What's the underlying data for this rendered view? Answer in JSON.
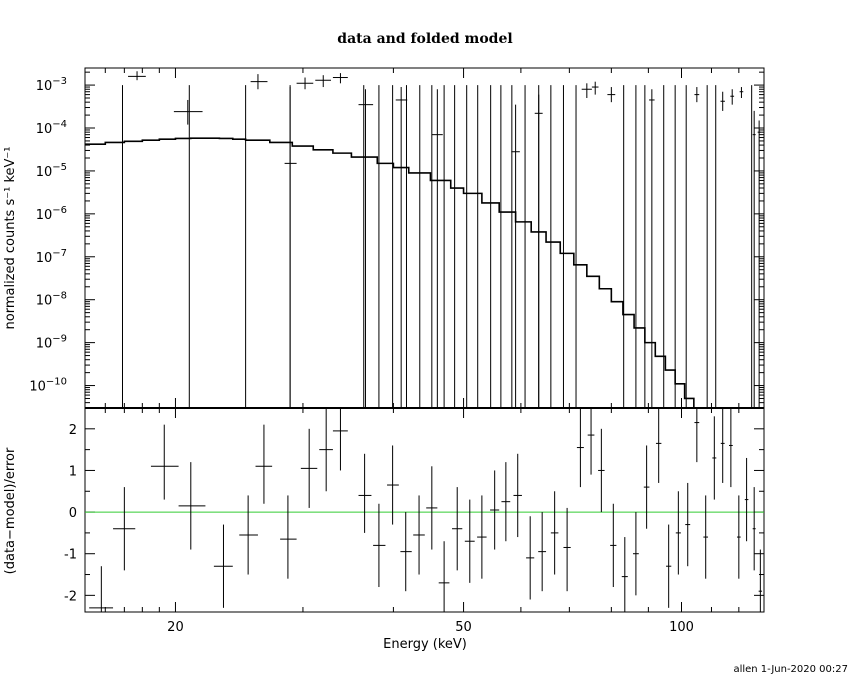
{
  "chart_data": [
    {
      "type": "scatter",
      "title": "data and folded model",
      "xlabel": "",
      "ylabel": "normalized counts s⁻¹ keV⁻¹",
      "x_scale": "log",
      "y_scale": "log",
      "xlim": [
        15,
        130
      ],
      "ylim": [
        3e-11,
        0.0025
      ],
      "y_ticks": [
        {
          "value": 0.001,
          "exp": "−3"
        },
        {
          "value": 0.0001,
          "exp": "−4"
        },
        {
          "value": 1e-05,
          "exp": "−5"
        },
        {
          "value": 1e-06,
          "exp": "−6"
        },
        {
          "value": 1e-07,
          "exp": "−7"
        },
        {
          "value": 1e-08,
          "exp": "−8"
        },
        {
          "value": 1e-09,
          "exp": "−9"
        },
        {
          "value": 1e-10,
          "exp": "−10"
        }
      ],
      "y_tick_base": "10",
      "data_points": [
        {
          "x": 17.7,
          "xerr": [
            17.2,
            18.2
          ],
          "y": 0.0016,
          "ylo": 0.0013,
          "yhi": 0.0021
        },
        {
          "x": 20.8,
          "xerr": [
            19.9,
            21.8
          ],
          "y": 0.00024,
          "ylo": 0.00012,
          "yhi": 0.00045
        },
        {
          "x": 26.0,
          "xerr": [
            25.4,
            26.8
          ],
          "y": 0.0012,
          "ylo": 0.0008,
          "yhi": 0.0018
        },
        {
          "x": 28.8,
          "xerr": [
            28.3,
            29.4
          ],
          "y": 1.5e-05,
          "ylo": 3e-11,
          "yhi": 0.0009
        },
        {
          "x": 30.2,
          "xerr": [
            29.4,
            31.0
          ],
          "y": 0.0011,
          "ylo": 0.0008,
          "yhi": 0.0015
        },
        {
          "x": 32.0,
          "xerr": [
            31.2,
            32.8
          ],
          "y": 0.0013,
          "ylo": 0.0009,
          "yhi": 0.0017
        },
        {
          "x": 33.8,
          "xerr": [
            33.0,
            34.6
          ],
          "y": 0.0015,
          "ylo": 0.0011,
          "yhi": 0.0019
        },
        {
          "x": 36.6,
          "xerr": [
            35.8,
            37.5
          ],
          "y": 0.00035,
          "ylo": 3e-11,
          "yhi": 0.0008
        },
        {
          "x": 41.0,
          "xerr": [
            40.3,
            41.8
          ],
          "y": 0.00045,
          "ylo": 3e-11,
          "yhi": 0.0009
        },
        {
          "x": 46.0,
          "xerr": [
            45.2,
            46.8
          ],
          "y": 7e-05,
          "ylo": 3e-11,
          "yhi": 0.0008
        },
        {
          "x": 59.0,
          "xerr": [
            58.2,
            59.8
          ],
          "y": 2.8e-05,
          "ylo": 3e-11,
          "yhi": 0.00035
        },
        {
          "x": 63.5,
          "xerr": [
            62.7,
            64.3
          ],
          "y": 0.00022,
          "ylo": 3e-11,
          "yhi": 0.0006
        },
        {
          "x": 74.0,
          "xerr": [
            72.8,
            75.2
          ],
          "y": 0.0008,
          "ylo": 0.0005,
          "yhi": 0.0011
        },
        {
          "x": 76.0,
          "xerr": [
            75.2,
            76.8
          ],
          "y": 0.0009,
          "ylo": 0.0006,
          "yhi": 0.0012
        },
        {
          "x": 80.0,
          "xerr": [
            79.0,
            81.0
          ],
          "y": 0.0006,
          "ylo": 0.0004,
          "yhi": 0.0009
        },
        {
          "x": 91.0,
          "xerr": [
            90.2,
            91.8
          ],
          "y": 0.00045,
          "ylo": 3e-11,
          "yhi": 0.0008
        },
        {
          "x": 105.0,
          "xerr": [
            104.2,
            105.8
          ],
          "y": 0.0006,
          "ylo": 0.0004,
          "yhi": 0.0009
        },
        {
          "x": 114.0,
          "xerr": [
            113.2,
            114.8
          ],
          "y": 0.00042,
          "ylo": 0.00025,
          "yhi": 0.0007
        },
        {
          "x": 117.5,
          "xerr": [
            116.8,
            118.2
          ],
          "y": 0.00055,
          "ylo": 0.00035,
          "yhi": 0.0008
        },
        {
          "x": 121.0,
          "xerr": [
            120.3,
            121.7
          ],
          "y": 0.0007,
          "ylo": 0.0005,
          "yhi": 0.0009
        },
        {
          "x": 126.0,
          "xerr": [
            125.4,
            126.6
          ],
          "y": 7e-05,
          "ylo": 3e-11,
          "yhi": 0.00025
        },
        {
          "x": 128.0,
          "xerr": [
            127.4,
            128.6
          ],
          "y": 8e-05,
          "ylo": 3e-11,
          "yhi": 0.00015
        }
      ],
      "upper_limit_x": [
        16.9,
        20.9,
        25.0,
        28.8,
        36.4,
        38.2,
        39.9,
        41.7,
        43.5,
        45.2,
        47.0,
        48.6,
        50.5,
        52.3,
        54.5,
        56.3,
        58.3,
        60.8,
        63.5,
        66.0,
        68.7,
        71.5,
        83.2,
        86.5,
        89.0,
        94.5,
        98.0,
        101.5,
        108.5,
        111.5,
        125.0
      ],
      "upper_limit_top": 0.001,
      "model": {
        "x": [
          15,
          16,
          17,
          18,
          19,
          20,
          21,
          22,
          23,
          24,
          25,
          27,
          29,
          31,
          33,
          35,
          38,
          40,
          42,
          45,
          48,
          50,
          53,
          56,
          59,
          62,
          65,
          68,
          71,
          74,
          77,
          80,
          83,
          86,
          89,
          92,
          95,
          98,
          101,
          104,
          107,
          110,
          113,
          116,
          119,
          122,
          125,
          128,
          130
        ],
        "y": [
          4.2e-05,
          4.6e-05,
          4.9e-05,
          5.2e-05,
          5.5e-05,
          5.7e-05,
          5.8e-05,
          5.8e-05,
          5.7e-05,
          5.5e-05,
          5.2e-05,
          4.6e-05,
          3.8e-05,
          3.1e-05,
          2.6e-05,
          2.1e-05,
          1.5e-05,
          1.2e-05,
          9e-06,
          6e-06,
          4e-06,
          3e-06,
          1.8e-06,
          1.1e-06,
          6.5e-07,
          3.8e-07,
          2.2e-07,
          1.2e-07,
          6.5e-08,
          3.5e-08,
          1.8e-08,
          9e-09,
          4.5e-09,
          2.2e-09,
          1e-09,
          4.8e-10,
          2.3e-10,
          1.1e-10,
          5e-11,
          3e-11,
          3e-11,
          3e-11,
          3e-11,
          3e-11,
          3e-11,
          3e-11,
          3e-11,
          3e-11,
          3e-11
        ]
      },
      "note_model_cut": "model continues steeply below plot near 128 keV"
    },
    {
      "type": "scatter",
      "title": "",
      "xlabel": "Energy (keV)",
      "ylabel": "(data−model)/error",
      "x_scale": "log",
      "y_scale": "linear",
      "xlim": [
        15,
        130
      ],
      "ylim": [
        -2.4,
        2.5
      ],
      "x_ticks": [
        20,
        50,
        100
      ],
      "y_ticks": [
        2,
        1,
        0,
        -1,
        -2
      ],
      "zero_line_color": "#33cc33",
      "data_points": [
        {
          "x": 15.8,
          "xerr": [
            15.2,
            16.4
          ],
          "y": -2.3,
          "ylo": -2.6,
          "yhi": -1.3
        },
        {
          "x": 17.0,
          "xerr": [
            16.4,
            17.6
          ],
          "y": -0.4,
          "ylo": -1.4,
          "yhi": 0.6
        },
        {
          "x": 19.3,
          "xerr": [
            18.5,
            20.2
          ],
          "y": 1.1,
          "ylo": 0.3,
          "yhi": 2.1
        },
        {
          "x": 21.0,
          "xerr": [
            20.2,
            22.0
          ],
          "y": 0.15,
          "ylo": -0.9,
          "yhi": 1.2
        },
        {
          "x": 23.3,
          "xerr": [
            22.6,
            24.0
          ],
          "y": -1.3,
          "ylo": -2.3,
          "yhi": -0.3
        },
        {
          "x": 25.2,
          "xerr": [
            24.5,
            26.0
          ],
          "y": -0.55,
          "ylo": -1.5,
          "yhi": 0.4
        },
        {
          "x": 26.5,
          "xerr": [
            25.8,
            27.2
          ],
          "y": 1.1,
          "ylo": 0.2,
          "yhi": 2.1
        },
        {
          "x": 28.6,
          "xerr": [
            27.9,
            29.4
          ],
          "y": -0.65,
          "ylo": -1.6,
          "yhi": 0.4
        },
        {
          "x": 30.6,
          "xerr": [
            29.8,
            31.4
          ],
          "y": 1.05,
          "ylo": 0.1,
          "yhi": 2.0
        },
        {
          "x": 32.3,
          "xerr": [
            31.6,
            33.0
          ],
          "y": 1.5,
          "ylo": 0.5,
          "yhi": 2.5
        },
        {
          "x": 33.8,
          "xerr": [
            33.0,
            34.6
          ],
          "y": 1.95,
          "ylo": 1.0,
          "yhi": 2.5
        },
        {
          "x": 36.5,
          "xerr": [
            35.8,
            37.3
          ],
          "y": 0.4,
          "ylo": -0.5,
          "yhi": 1.4
        },
        {
          "x": 38.2,
          "xerr": [
            37.5,
            39.0
          ],
          "y": -0.8,
          "ylo": -1.8,
          "yhi": 0.2
        },
        {
          "x": 39.9,
          "xerr": [
            39.2,
            40.7
          ],
          "y": 0.65,
          "ylo": -0.3,
          "yhi": 1.6
        },
        {
          "x": 41.6,
          "xerr": [
            40.9,
            42.4
          ],
          "y": -0.95,
          "ylo": -1.9,
          "yhi": 0.0
        },
        {
          "x": 43.4,
          "xerr": [
            42.6,
            44.2
          ],
          "y": -0.55,
          "ylo": -1.5,
          "yhi": 0.4
        },
        {
          "x": 45.2,
          "xerr": [
            44.4,
            46.0
          ],
          "y": 0.1,
          "ylo": -0.9,
          "yhi": 1.1
        },
        {
          "x": 47.0,
          "xerr": [
            46.2,
            47.8
          ],
          "y": -1.7,
          "ylo": -2.4,
          "yhi": -0.7
        },
        {
          "x": 49.0,
          "xerr": [
            48.2,
            49.8
          ],
          "y": -0.4,
          "ylo": -1.4,
          "yhi": 0.6
        },
        {
          "x": 51.0,
          "xerr": [
            50.2,
            51.8
          ],
          "y": -0.7,
          "ylo": -1.7,
          "yhi": 0.3
        },
        {
          "x": 53.0,
          "xerr": [
            52.2,
            53.8
          ],
          "y": -0.6,
          "ylo": -1.6,
          "yhi": 0.4
        },
        {
          "x": 55.2,
          "xerr": [
            54.4,
            56.0
          ],
          "y": 0.05,
          "ylo": -0.9,
          "yhi": 1.0
        },
        {
          "x": 57.2,
          "xerr": [
            56.4,
            58.0
          ],
          "y": 0.25,
          "ylo": -0.7,
          "yhi": 1.2
        },
        {
          "x": 59.4,
          "xerr": [
            58.6,
            60.2
          ],
          "y": 0.4,
          "ylo": -0.6,
          "yhi": 1.4
        },
        {
          "x": 61.8,
          "xerr": [
            61.0,
            62.6
          ],
          "y": -1.1,
          "ylo": -2.1,
          "yhi": -0.1
        },
        {
          "x": 64.2,
          "xerr": [
            63.4,
            65.0
          ],
          "y": -0.95,
          "ylo": -1.9,
          "yhi": 0.0
        },
        {
          "x": 66.8,
          "xerr": [
            66.0,
            67.6
          ],
          "y": -0.5,
          "ylo": -1.5,
          "yhi": 0.5
        },
        {
          "x": 69.5,
          "xerr": [
            68.7,
            70.3
          ],
          "y": -0.85,
          "ylo": -1.9,
          "yhi": 0.1
        },
        {
          "x": 72.5,
          "xerr": [
            71.7,
            73.3
          ],
          "y": 1.55,
          "ylo": 0.6,
          "yhi": 2.5
        },
        {
          "x": 75.0,
          "xerr": [
            74.2,
            75.8
          ],
          "y": 1.85,
          "ylo": 0.9,
          "yhi": 2.5
        },
        {
          "x": 77.5,
          "xerr": [
            76.7,
            78.3
          ],
          "y": 1.0,
          "ylo": 0.0,
          "yhi": 2.0
        },
        {
          "x": 80.5,
          "xerr": [
            79.7,
            81.3
          ],
          "y": -0.8,
          "ylo": -1.8,
          "yhi": 0.2
        },
        {
          "x": 83.5,
          "xerr": [
            82.7,
            84.3
          ],
          "y": -1.55,
          "ylo": -2.4,
          "yhi": -0.6
        },
        {
          "x": 86.5,
          "xerr": [
            85.7,
            87.3
          ],
          "y": -1.0,
          "ylo": -2.0,
          "yhi": 0.0
        },
        {
          "x": 89.5,
          "xerr": [
            88.7,
            90.3
          ],
          "y": 0.6,
          "ylo": -0.4,
          "yhi": 1.6
        },
        {
          "x": 93.0,
          "xerr": [
            92.2,
            93.8
          ],
          "y": 1.65,
          "ylo": 0.7,
          "yhi": 2.5
        },
        {
          "x": 96.0,
          "xerr": [
            95.2,
            96.8
          ],
          "y": -1.3,
          "ylo": -2.3,
          "yhi": -0.3
        },
        {
          "x": 99.0,
          "xerr": [
            98.2,
            99.8
          ],
          "y": -0.5,
          "ylo": -1.5,
          "yhi": 0.5
        },
        {
          "x": 102.0,
          "xerr": [
            101.2,
            102.8
          ],
          "y": -0.3,
          "ylo": -1.3,
          "yhi": 0.7
        },
        {
          "x": 105.0,
          "xerr": [
            104.2,
            105.8
          ],
          "y": 2.15,
          "ylo": 1.2,
          "yhi": 2.5
        },
        {
          "x": 108.0,
          "xerr": [
            107.2,
            108.8
          ],
          "y": -0.6,
          "ylo": -1.6,
          "yhi": 0.4
        },
        {
          "x": 111.0,
          "xerr": [
            110.3,
            111.7
          ],
          "y": 1.3,
          "ylo": 0.3,
          "yhi": 2.3
        },
        {
          "x": 114.0,
          "xerr": [
            113.3,
            114.7
          ],
          "y": 1.65,
          "ylo": 0.7,
          "yhi": 2.5
        },
        {
          "x": 117.0,
          "xerr": [
            116.3,
            117.7
          ],
          "y": 1.6,
          "ylo": 0.6,
          "yhi": 2.5
        },
        {
          "x": 120.0,
          "xerr": [
            119.3,
            120.7
          ],
          "y": -0.6,
          "ylo": -1.6,
          "yhi": 0.4
        },
        {
          "x": 123.0,
          "xerr": [
            122.3,
            123.7
          ],
          "y": 0.3,
          "ylo": -0.7,
          "yhi": 1.3
        },
        {
          "x": 126.0,
          "xerr": [
            125.4,
            126.6
          ],
          "y": -0.4,
          "ylo": -1.4,
          "yhi": 0.6
        },
        {
          "x": 128.5,
          "xerr": [
            127.8,
            129.2
          ],
          "y": -1.9,
          "ylo": -2.4,
          "yhi": -0.9
        }
      ]
    }
  ],
  "footer": {
    "stamp": "allen   1-Jun-2020 00:27"
  }
}
